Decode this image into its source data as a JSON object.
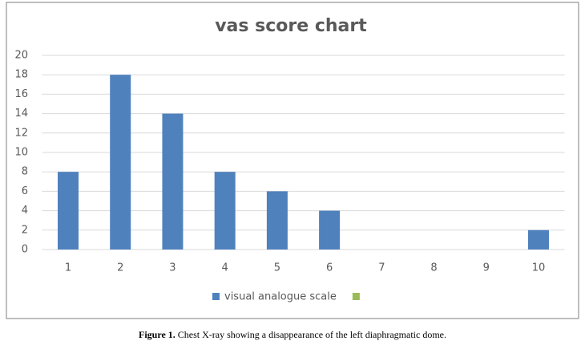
{
  "chart_data": {
    "type": "bar",
    "title": "vas score chart",
    "categories": [
      "1",
      "2",
      "3",
      "4",
      "5",
      "6",
      "7",
      "8",
      "9",
      "10"
    ],
    "series": [
      {
        "name": "visual analogue scale",
        "color": "#4f81bd",
        "values": [
          8,
          18,
          14,
          8,
          6,
          4,
          0,
          0,
          0,
          2
        ]
      },
      {
        "color": "#9bbb59",
        "values": [
          null,
          null,
          null,
          null,
          null,
          null,
          null,
          null,
          null,
          null
        ]
      }
    ],
    "ylim": [
      0,
      20
    ],
    "yticks": [
      0,
      2,
      4,
      6,
      8,
      10,
      12,
      14,
      16,
      18,
      20
    ],
    "grid": true,
    "legend": "bottom"
  },
  "caption": {
    "label": "Figure 1.",
    "text": "Chest X-ray showing a disappearance of the left diaphragmatic dome."
  }
}
